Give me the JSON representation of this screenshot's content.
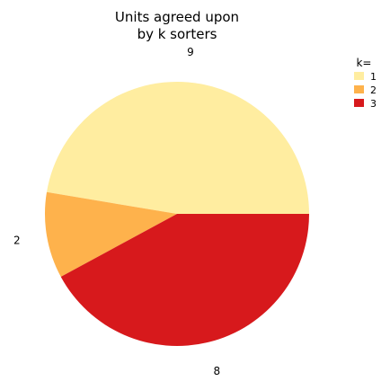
{
  "chart_data": {
    "type": "pie",
    "title": "Units agreed upon\nby k sorters",
    "categories": [
      "1",
      "2",
      "3"
    ],
    "values": [
      9,
      2,
      8
    ],
    "colors": [
      "#ffeda0",
      "#feb24c",
      "#d7191c"
    ],
    "legend": {
      "title": "k=",
      "placement": "top-right"
    },
    "start_angle_deg": 0,
    "direction": "counterclockwise"
  }
}
